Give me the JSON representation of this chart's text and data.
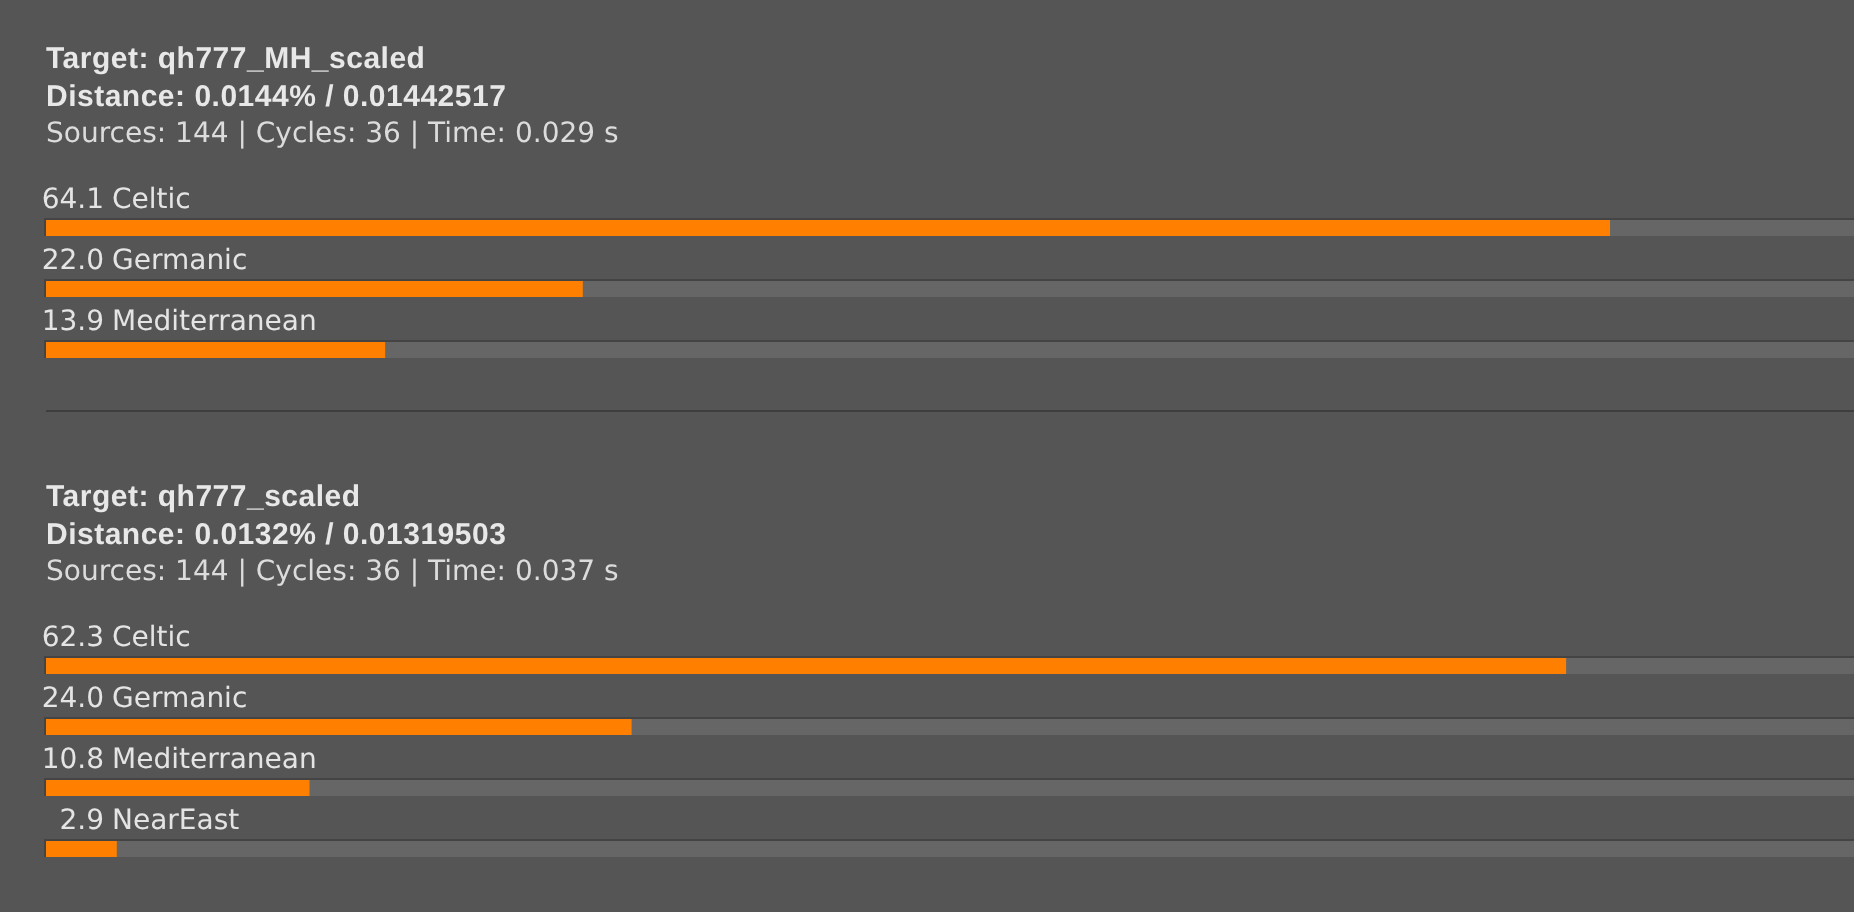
{
  "chart_data": [
    {
      "type": "bar",
      "orientation": "horizontal",
      "title": "Target: qh777_MH_scaled",
      "subtitle": "Distance: 0.0144% / 0.01442517",
      "annotations": [
        "Sources: 144 | Cycles: 36 | Time: 0.029 s"
      ],
      "categories": [
        "Celtic",
        "Germanic",
        "Mediterranean"
      ],
      "values": [
        64.1,
        22.0,
        13.9
      ],
      "value_labels": [
        "64.1",
        "22.0",
        "13.9"
      ],
      "color": "#ff8000",
      "tick_labels": "y"
    },
    {
      "type": "bar",
      "orientation": "horizontal",
      "title": "Target: qh777_scaled",
      "subtitle": "Distance: 0.0132% / 0.01319503",
      "annotations": [
        "Sources: 144 | Cycles: 36 | Time: 0.037 s"
      ],
      "categories": [
        "Celtic",
        "Germanic",
        "Mediterranean",
        "NearEast"
      ],
      "values": [
        62.3,
        24.0,
        10.8,
        2.9
      ],
      "value_labels": [
        "62.3",
        "24.0",
        "10.8",
        "2.9"
      ],
      "color": "#ff8000",
      "tick_labels": "y"
    }
  ]
}
